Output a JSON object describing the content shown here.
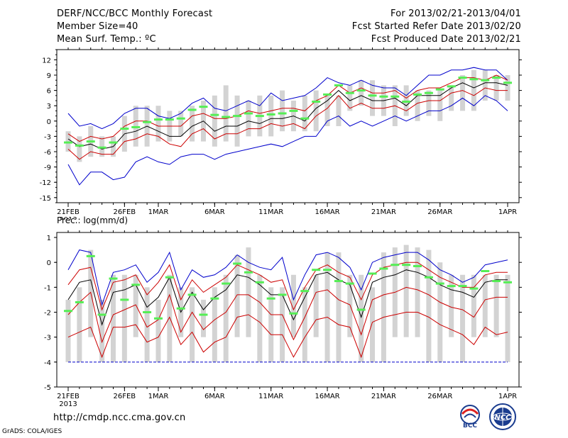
{
  "header": {
    "title": "DERF/NCC/BCC Monthly Forecast",
    "member_size": "Member Size=40",
    "variable": "Mean Surf. Temp.: ºC",
    "period": "For 2013/02/21-2013/04/01",
    "refer_date": "Fcst Started Refer Date 2013/02/20",
    "produced_date": "Fcst Produced Date 2013/02/21"
  },
  "footer": {
    "url": "http://cmdp.ncc.cma.gov.cn",
    "credit": "GrADS: COLA/IGES",
    "logo_bcc": "BCC",
    "logo_ncc": "NCC"
  },
  "colors": {
    "box": "#d3d3d3",
    "median": "#55ee55",
    "mean": "#000000",
    "inner": "#cc0000",
    "outer": "#0000cc"
  },
  "chart_data": [
    {
      "type": "line",
      "title": "Mean Surf. Temp.: ºC",
      "x_start_label": "21FEB",
      "x_year": "2013",
      "x_tick_labels": [
        "21FEB",
        "26FEB",
        "1MAR",
        "6MAR",
        "11MAR",
        "16MAR",
        "21MAR",
        "26MAR",
        "1APR"
      ],
      "x_tick_days": [
        0,
        5,
        8,
        13,
        18,
        23,
        28,
        33,
        39
      ],
      "ylim": [
        -16,
        14
      ],
      "yticks": [
        -15,
        -12,
        -9,
        -6,
        -3,
        0,
        3,
        6,
        9,
        12
      ],
      "days": 40,
      "box_low": [
        -6,
        -8,
        -7,
        -7,
        -7,
        -6,
        -5,
        -5,
        -4,
        -4,
        -3,
        -4,
        -4,
        -5,
        -4,
        -5,
        -3,
        -3,
        -3,
        -2,
        -2,
        -2,
        -2,
        -1,
        -1,
        2,
        3,
        1,
        1,
        -1,
        1,
        0,
        1,
        0,
        2,
        2,
        2,
        4,
        4,
        4
      ],
      "box_high": [
        -2,
        -3,
        -1,
        -3,
        -3,
        1,
        3,
        3,
        3,
        2,
        2,
        3,
        4,
        5,
        7,
        5,
        4,
        5,
        5,
        6,
        4,
        5,
        6,
        5,
        5,
        7,
        8,
        8,
        7,
        7,
        7,
        6,
        6,
        6,
        7,
        9,
        10,
        10,
        9,
        9
      ],
      "median": [
        -4.2,
        -4.8,
        -4.0,
        -5.2,
        -4.2,
        -1.5,
        -1.2,
        -0.2,
        0.3,
        0.3,
        0.5,
        2.2,
        2.8,
        1.2,
        0.8,
        1.0,
        1.5,
        1.0,
        1.3,
        1.5,
        2.0,
        0.5,
        3.8,
        5.2,
        7.0,
        5.5,
        6.0,
        5.0,
        4.8,
        4.8,
        3.8,
        5.2,
        5.5,
        6.2,
        6.8,
        8.5,
        8.2,
        8.0,
        8.5,
        7.5
      ],
      "series": [
        {
          "name": "outer-upper",
          "color": "#0000cc",
          "values": [
            1.5,
            -1.0,
            -0.5,
            -1.5,
            -0.5,
            1.5,
            2.5,
            2.5,
            1.0,
            0.5,
            1.5,
            3.5,
            4.5,
            2.5,
            2.0,
            3.0,
            4.0,
            3.0,
            5.5,
            4.0,
            4.5,
            5.0,
            6.5,
            8.5,
            7.5,
            7.0,
            8.0,
            7.0,
            6.5,
            6.5,
            5.0,
            7.0,
            9.0,
            9.0,
            10.0,
            10.0,
            10.5,
            10.0,
            10.0,
            8.0
          ]
        },
        {
          "name": "inner-upper",
          "color": "#cc0000",
          "values": [
            -2.5,
            -4.0,
            -3.0,
            -3.5,
            -3.0,
            -1.0,
            0.0,
            0.0,
            -1.0,
            -1.0,
            -1.0,
            1.0,
            1.5,
            0.5,
            0.5,
            1.0,
            2.0,
            1.5,
            2.0,
            2.5,
            2.5,
            2.0,
            4.0,
            5.0,
            7.0,
            5.5,
            6.5,
            5.5,
            5.5,
            6.0,
            4.5,
            6.0,
            6.5,
            6.5,
            7.5,
            8.5,
            8.5,
            8.0,
            9.0,
            8.0
          ]
        },
        {
          "name": "mean",
          "color": "#000000",
          "values": [
            -3.5,
            -5.0,
            -4.5,
            -5.5,
            -5.0,
            -2.5,
            -2.0,
            -1.0,
            -2.0,
            -3.0,
            -3.0,
            -1.0,
            0.0,
            -2.0,
            -1.0,
            -1.0,
            0.0,
            -0.5,
            0.5,
            0.5,
            1.0,
            0.0,
            2.5,
            4.0,
            6.0,
            4.0,
            5.0,
            4.0,
            4.0,
            4.5,
            3.0,
            5.0,
            5.0,
            5.0,
            6.5,
            7.5,
            6.5,
            7.5,
            7.5,
            7.0
          ]
        },
        {
          "name": "inner-lower",
          "color": "#cc0000",
          "values": [
            -5.5,
            -7.5,
            -6.0,
            -6.5,
            -6.5,
            -4.0,
            -3.5,
            -2.5,
            -3.0,
            -4.5,
            -5.0,
            -2.5,
            -1.5,
            -3.5,
            -2.5,
            -2.5,
            -1.5,
            -1.5,
            -0.5,
            -1.0,
            -0.5,
            -1.5,
            1.0,
            2.5,
            5.0,
            2.5,
            3.5,
            2.5,
            2.5,
            3.0,
            2.0,
            3.5,
            4.0,
            4.0,
            5.5,
            6.0,
            5.0,
            6.5,
            6.0,
            6.0
          ]
        },
        {
          "name": "outer-lower",
          "color": "#0000cc",
          "values": [
            -8.5,
            -12.5,
            -10.0,
            -10.0,
            -11.5,
            -11.0,
            -8.0,
            -7.0,
            -8.0,
            -8.5,
            -7.0,
            -6.5,
            -6.5,
            -7.5,
            -6.5,
            -6.0,
            -5.5,
            -5.0,
            -4.5,
            -5.0,
            -4.0,
            -3.0,
            -3.0,
            0.0,
            1.0,
            -1.0,
            0.0,
            -1.0,
            0.0,
            1.0,
            0.0,
            1.0,
            2.0,
            2.0,
            3.0,
            4.5,
            3.0,
            5.0,
            4.0,
            2.0
          ]
        }
      ]
    },
    {
      "type": "line",
      "title": "Prec.: log(mm/d)",
      "x_start_label": "21FEB",
      "x_year": "2013",
      "x_tick_labels": [
        "21FEB",
        "26FEB",
        "1MAR",
        "6MAR",
        "11MAR",
        "16MAR",
        "21MAR",
        "26MAR",
        "1APR"
      ],
      "x_tick_days": [
        0,
        5,
        8,
        13,
        18,
        23,
        28,
        33,
        39
      ],
      "ylim": [
        -5,
        1.2
      ],
      "yticks": [
        -5,
        -4,
        -3,
        -2,
        -1,
        0,
        1
      ],
      "days": 40,
      "box_low": [
        -4,
        -4,
        -3,
        -4,
        -4,
        -4,
        -3,
        -4,
        -4,
        -4,
        -3,
        -4,
        -3,
        -4,
        -4,
        -3,
        -3,
        -4,
        -4,
        -4,
        -3,
        -4,
        -3,
        -4,
        -4,
        -3,
        -4,
        -4,
        -4,
        -3,
        -3,
        -3,
        -4,
        -4,
        -3,
        -4,
        -3,
        -3,
        -3,
        -4
      ],
      "box_high": [
        -1.5,
        -1.0,
        0.5,
        -1.5,
        -0.5,
        -0.5,
        -0.5,
        -1.0,
        -1.5,
        -0.5,
        -1.0,
        -1.0,
        -1.5,
        -1.0,
        -0.5,
        0.3,
        0.6,
        -0.5,
        -1.0,
        -1.0,
        -0.5,
        -1.0,
        -0.5,
        0.4,
        0.4,
        -0.5,
        -0.5,
        -1.0,
        0.4,
        0.6,
        0.7,
        0.6,
        0.5,
        0.0,
        -0.5,
        -0.5,
        -0.5,
        -0.5,
        -0.5,
        -0.5
      ],
      "median": [
        -1.95,
        -1.6,
        0.25,
        -2.1,
        -0.65,
        -1.5,
        -0.9,
        -2.0,
        -2.25,
        -0.6,
        -1.85,
        -1.3,
        -2.1,
        -1.45,
        -0.85,
        -0.05,
        -0.4,
        -0.8,
        -1.45,
        -1.3,
        -2.05,
        -1.15,
        -0.3,
        -0.3,
        -0.75,
        -0.85,
        -1.9,
        -0.45,
        -0.25,
        -0.1,
        -0.1,
        -0.15,
        -0.6,
        -0.85,
        -0.95,
        -0.95,
        -1.05,
        -0.35,
        -0.75,
        -0.8
      ],
      "series": [
        {
          "name": "outer-upper",
          "color": "#0000cc",
          "values": [
            -0.3,
            0.5,
            0.4,
            -1.7,
            -0.4,
            -0.3,
            -0.1,
            -0.8,
            -0.4,
            0.4,
            -1.1,
            -0.3,
            -0.6,
            -0.5,
            -0.2,
            0.3,
            0.0,
            -0.2,
            -0.3,
            0.2,
            -1.5,
            -0.5,
            0.3,
            0.4,
            0.2,
            -0.2,
            -1.1,
            0.0,
            0.2,
            0.3,
            0.4,
            0.4,
            0.1,
            -0.3,
            -0.5,
            -0.8,
            -0.6,
            -0.1,
            0.0,
            0.1
          ]
        },
        {
          "name": "inner-upper",
          "color": "#cc0000",
          "values": [
            -0.9,
            -0.3,
            -0.2,
            -1.9,
            -0.8,
            -0.7,
            -0.5,
            -1.3,
            -0.8,
            -0.1,
            -1.5,
            -0.7,
            -1.2,
            -0.9,
            -0.6,
            -0.1,
            -0.3,
            -0.5,
            -0.8,
            -0.7,
            -1.9,
            -1.0,
            -0.3,
            -0.1,
            -0.4,
            -0.6,
            -1.5,
            -0.5,
            -0.2,
            -0.1,
            0.0,
            0.0,
            -0.3,
            -0.6,
            -0.8,
            -1.0,
            -1.0,
            -0.5,
            -0.4,
            -0.4
          ]
        },
        {
          "name": "mean",
          "color": "#000000",
          "values": [
            -1.5,
            -0.8,
            -0.7,
            -2.5,
            -1.2,
            -1.1,
            -0.9,
            -1.8,
            -1.4,
            -0.6,
            -2.0,
            -1.2,
            -1.9,
            -1.4,
            -1.1,
            -0.5,
            -0.6,
            -0.9,
            -1.3,
            -1.3,
            -2.3,
            -1.4,
            -0.5,
            -0.4,
            -0.7,
            -0.9,
            -2.2,
            -0.8,
            -0.6,
            -0.5,
            -0.3,
            -0.4,
            -0.6,
            -0.9,
            -1.1,
            -1.2,
            -1.4,
            -0.8,
            -0.7,
            -0.7
          ]
        },
        {
          "name": "inner-lower",
          "color": "#cc0000",
          "values": [
            -2.1,
            -1.6,
            -1.2,
            -3.2,
            -2.1,
            -1.9,
            -1.7,
            -2.6,
            -2.3,
            -1.3,
            -2.8,
            -2.0,
            -2.7,
            -2.3,
            -2.0,
            -1.3,
            -1.3,
            -1.6,
            -2.1,
            -2.1,
            -3.1,
            -2.2,
            -1.2,
            -1.1,
            -1.5,
            -1.7,
            -2.9,
            -1.5,
            -1.3,
            -1.2,
            -1.0,
            -1.1,
            -1.3,
            -1.6,
            -1.8,
            -1.9,
            -2.2,
            -1.5,
            -1.4,
            -1.4
          ]
        },
        {
          "name": "outer-lower",
          "color": "#0000cc",
          "values": [
            -4,
            -4,
            -4,
            -4,
            -4,
            -4,
            -4,
            -4,
            -4,
            -3.9,
            -4,
            -4,
            -4,
            -4,
            -4,
            -4,
            -4,
            -4,
            -4,
            -4,
            -4,
            -4,
            -4,
            -4,
            -4,
            -4,
            -4,
            -4,
            -4,
            -4,
            -4,
            -4,
            -4,
            -4,
            -4,
            -4,
            -4,
            -4,
            -4,
            -4
          ]
        }
      ],
      "extra_series": [
        {
          "name": "lower-red",
          "color": "#cc0000",
          "values": [
            -3.0,
            -2.8,
            -2.6,
            -3.8,
            -2.6,
            -2.6,
            -2.5,
            -3.2,
            -3.0,
            -2.2,
            -3.3,
            -2.8,
            -3.6,
            -3.2,
            -3.0,
            -2.2,
            -2.1,
            -2.4,
            -2.9,
            -2.9,
            -3.8,
            -3.0,
            -2.3,
            -2.2,
            -2.5,
            -2.6,
            -3.8,
            -2.4,
            -2.2,
            -2.1,
            -2.0,
            -2.0,
            -2.2,
            -2.5,
            -2.7,
            -2.9,
            -3.3,
            -2.6,
            -2.9,
            -2.8
          ]
        }
      ]
    }
  ]
}
